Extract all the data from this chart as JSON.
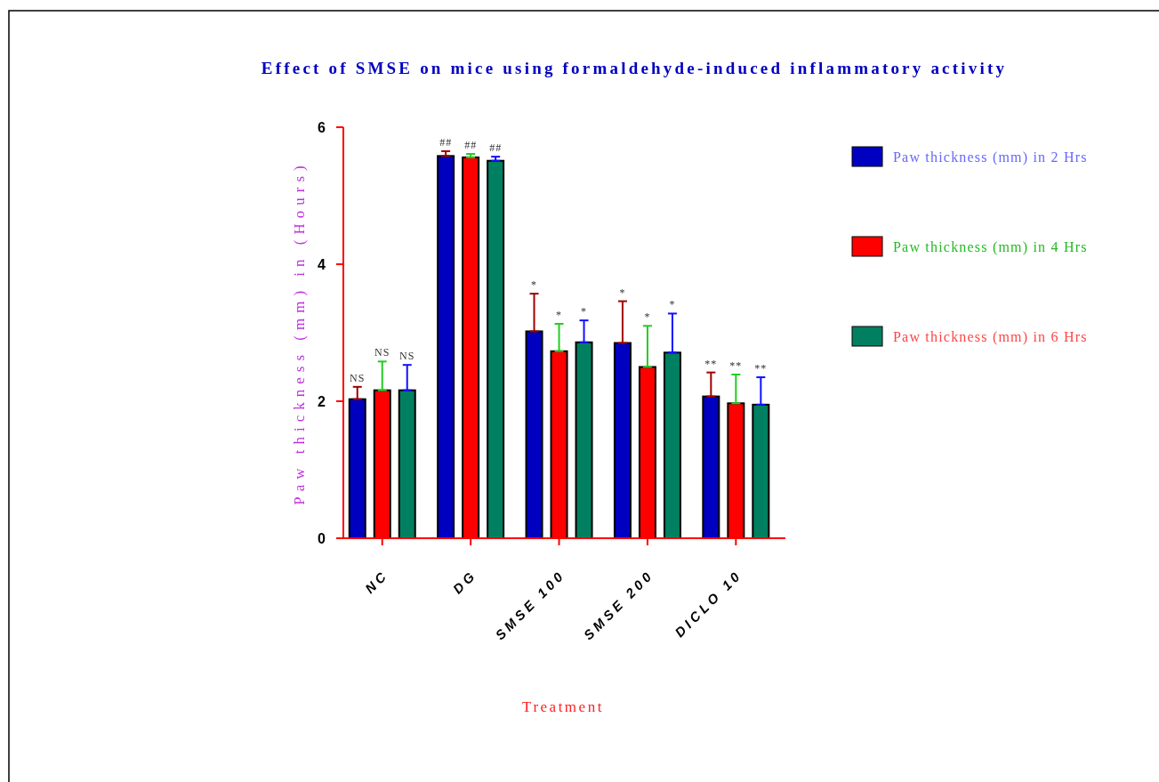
{
  "chart_data": {
    "type": "bar",
    "title": "Effect of SMSE on mice using formaldehyde-induced inflammatory activity",
    "xlabel": "Treatment",
    "ylabel": "Paw thickness (mm) in (Hours)",
    "categories": [
      "NC",
      "DG",
      "SMSE 100",
      "SMSE 200",
      "DICLO 10"
    ],
    "series": [
      {
        "name": "Paw thickness (mm) in 2 Hrs",
        "color": "#0000c0",
        "values": [
          2.03,
          5.58,
          3.02,
          2.85,
          2.07
        ],
        "errors": [
          [
            2.03,
            2.21
          ],
          [
            5.58,
            5.65
          ],
          [
            3.02,
            3.57
          ],
          [
            2.85,
            3.46
          ],
          [
            2.07,
            2.42
          ]
        ]
      },
      {
        "name": "Paw thickness (mm) in 4 Hrs",
        "color": "#ff0000",
        "values": [
          2.16,
          5.56,
          2.73,
          2.5,
          1.97
        ],
        "errors": [
          [
            2.16,
            2.58
          ],
          [
            5.56,
            5.61
          ],
          [
            2.73,
            3.13
          ],
          [
            2.5,
            3.1
          ],
          [
            1.97,
            2.39
          ]
        ]
      },
      {
        "name": "Paw thickness (mm) in 6 Hrs",
        "color": "#008060",
        "values": [
          2.16,
          5.51,
          2.86,
          2.71,
          1.95
        ],
        "errors": [
          [
            2.16,
            2.53
          ],
          [
            5.51,
            5.57
          ],
          [
            2.86,
            3.18
          ],
          [
            2.71,
            3.28
          ],
          [
            1.95,
            2.35
          ]
        ]
      }
    ],
    "ylim": [
      0,
      6
    ],
    "yticks": [
      0,
      2,
      4,
      6
    ],
    "grid": false,
    "legend": "right",
    "annotations": [
      "NS",
      "NS",
      "NS",
      "##",
      "##",
      "##",
      "*",
      "*",
      "*",
      "*",
      "*",
      "*",
      "**",
      "**",
      "**"
    ]
  }
}
